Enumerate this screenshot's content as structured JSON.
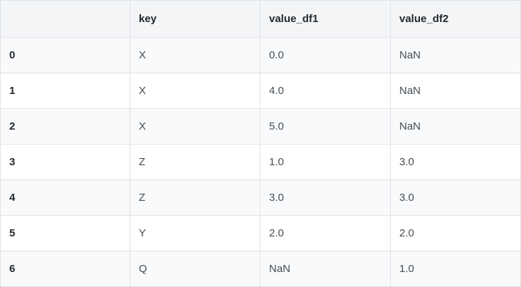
{
  "table": {
    "columns": [
      "",
      "key",
      "value_df1",
      "value_df2"
    ],
    "rows": [
      {
        "index": "0",
        "key": "X",
        "value_df1": "0.0",
        "value_df2": "NaN"
      },
      {
        "index": "1",
        "key": "X",
        "value_df1": "4.0",
        "value_df2": "NaN"
      },
      {
        "index": "2",
        "key": "X",
        "value_df1": "5.0",
        "value_df2": "NaN"
      },
      {
        "index": "3",
        "key": "Z",
        "value_df1": "1.0",
        "value_df2": "3.0"
      },
      {
        "index": "4",
        "key": "Z",
        "value_df1": "3.0",
        "value_df2": "3.0"
      },
      {
        "index": "5",
        "key": "Y",
        "value_df1": "2.0",
        "value_df2": "2.0"
      },
      {
        "index": "6",
        "key": "Q",
        "value_df1": "NaN",
        "value_df2": "1.0"
      }
    ]
  }
}
